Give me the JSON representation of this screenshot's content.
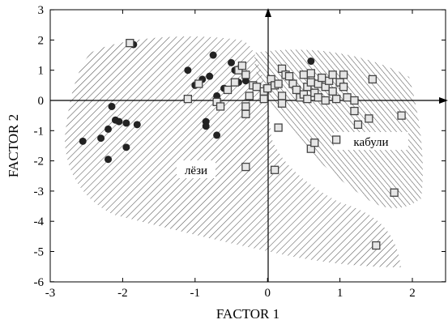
{
  "chart_data": {
    "type": "scatter",
    "title": "",
    "xlabel": "FACTOR 1",
    "ylabel": "FACTOR 2",
    "xlim": [
      -3,
      2.4
    ],
    "ylim": [
      -6,
      3
    ],
    "x_ticks": [
      "-3",
      "-2",
      "-1",
      "0",
      "1",
      "2"
    ],
    "y_ticks": [
      "3",
      "2",
      "1",
      "0",
      "-1",
      "-2",
      "-3",
      "-4",
      "-5",
      "-6"
    ],
    "grid": false,
    "legend": "none",
    "annotations": {
      "region_a": "лёзи",
      "region_b": "кабули"
    },
    "series": [
      {
        "marker": "filled-circle",
        "color": "#222222",
        "points": [
          [
            -2.55,
            -1.35
          ],
          [
            -2.3,
            -1.25
          ],
          [
            -2.2,
            -0.95
          ],
          [
            -2.2,
            -1.95
          ],
          [
            -2.15,
            -0.2
          ],
          [
            -2.1,
            -0.65
          ],
          [
            -2.05,
            -0.7
          ],
          [
            -1.95,
            -0.75
          ],
          [
            -1.95,
            -1.55
          ],
          [
            -1.8,
            -0.8
          ],
          [
            -1.85,
            1.85
          ],
          [
            -1.1,
            1.0
          ],
          [
            -1.0,
            0.5
          ],
          [
            -0.9,
            0.7
          ],
          [
            -0.85,
            -0.7
          ],
          [
            -0.85,
            -0.85
          ],
          [
            -0.8,
            0.8
          ],
          [
            -0.75,
            1.5
          ],
          [
            -0.7,
            0.15
          ],
          [
            -0.7,
            -1.15
          ],
          [
            -0.6,
            0.4
          ],
          [
            -0.5,
            1.25
          ],
          [
            -0.45,
            1.0
          ],
          [
            -0.4,
            0.6
          ],
          [
            -0.3,
            0.65
          ],
          [
            0.6,
            1.3
          ]
        ]
      },
      {
        "marker": "open-square",
        "color": "#444444",
        "points": [
          [
            -1.9,
            1.9
          ],
          [
            -1.1,
            0.05
          ],
          [
            -0.95,
            0.55
          ],
          [
            -0.7,
            -0.05
          ],
          [
            -0.65,
            -0.2
          ],
          [
            -0.55,
            0.35
          ],
          [
            -0.45,
            0.6
          ],
          [
            -0.4,
            1.0
          ],
          [
            -0.35,
            1.15
          ],
          [
            -0.3,
            0.85
          ],
          [
            -0.3,
            -0.2
          ],
          [
            -0.25,
            0.15
          ],
          [
            -0.2,
            0.5
          ],
          [
            -0.15,
            0.45
          ],
          [
            -0.05,
            0.3
          ],
          [
            -0.05,
            0.05
          ],
          [
            0.0,
            0.4
          ],
          [
            -0.3,
            -0.45
          ],
          [
            0.05,
            0.7
          ],
          [
            0.1,
            0.5
          ],
          [
            0.15,
            0.55
          ],
          [
            0.2,
            1.05
          ],
          [
            0.2,
            0.15
          ],
          [
            0.25,
            0.85
          ],
          [
            0.2,
            -0.1
          ],
          [
            0.3,
            0.8
          ],
          [
            0.35,
            0.55
          ],
          [
            0.4,
            0.35
          ],
          [
            0.45,
            0.1
          ],
          [
            0.5,
            0.85
          ],
          [
            0.5,
            0.2
          ],
          [
            0.55,
            0.45
          ],
          [
            0.55,
            0.05
          ],
          [
            0.6,
            0.9
          ],
          [
            0.6,
            0.6
          ],
          [
            0.65,
            0.25
          ],
          [
            0.7,
            0.1
          ],
          [
            0.7,
            0.55
          ],
          [
            0.75,
            0.75
          ],
          [
            0.8,
            0.0
          ],
          [
            0.8,
            0.45
          ],
          [
            0.85,
            0.65
          ],
          [
            0.9,
            0.85
          ],
          [
            0.9,
            0.3
          ],
          [
            0.95,
            0.05
          ],
          [
            1.0,
            0.6
          ],
          [
            1.05,
            0.85
          ],
          [
            1.05,
            0.45
          ],
          [
            1.1,
            0.1
          ],
          [
            1.2,
            0.0
          ],
          [
            1.2,
            -0.35
          ],
          [
            1.25,
            -0.8
          ],
          [
            1.4,
            -0.6
          ],
          [
            1.45,
            0.7
          ],
          [
            1.85,
            -0.5
          ],
          [
            0.15,
            -0.9
          ],
          [
            0.6,
            -1.6
          ],
          [
            0.65,
            -1.4
          ],
          [
            0.95,
            -1.3
          ],
          [
            -0.3,
            -2.2
          ],
          [
            0.1,
            -2.3
          ],
          [
            1.75,
            -3.05
          ],
          [
            1.5,
            -4.8
          ]
        ]
      }
    ]
  }
}
